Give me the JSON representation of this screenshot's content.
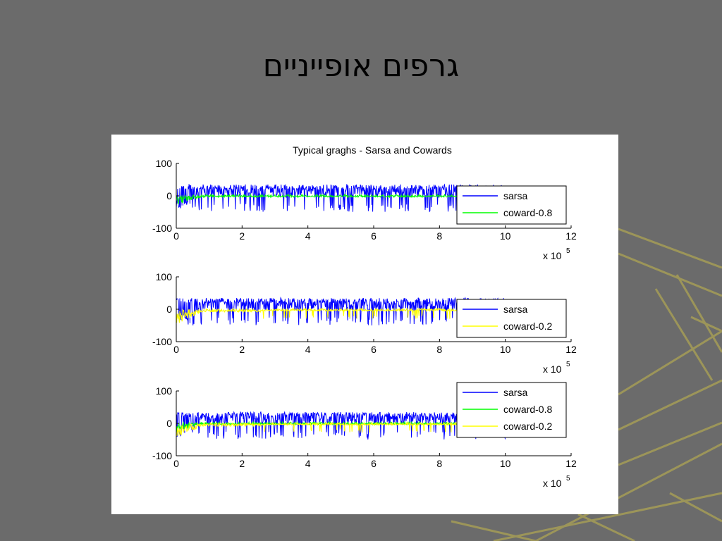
{
  "slide": {
    "title": "גרפים אופייניים"
  },
  "colors": {
    "background": "#6b6b6b",
    "decoration": "#a59d57",
    "sarsa": "#0000ff",
    "coward_08": "#00ff00",
    "coward_02": "#ffff00"
  },
  "chart_data": {
    "type": "line",
    "title": "Typical graghs - Sarsa and Cowards",
    "panels": [
      {
        "xlim": [
          0,
          12
        ],
        "ylim": [
          -100,
          100
        ],
        "xticks": [
          "0",
          "2",
          "4",
          "6",
          "8",
          "10",
          "12"
        ],
        "yticks": [
          "100",
          "0",
          "-100"
        ],
        "x_multiplier": "x 10",
        "x_exponent": "5",
        "legend_position": "right",
        "series": [
          {
            "name": "sarsa",
            "color": "#0000ff",
            "x_range": [
              0,
              10
            ],
            "approx_band": [
              -50,
              35
            ]
          },
          {
            "name": "coward-0.8",
            "color": "#00ff00",
            "x_range": [
              0,
              10
            ],
            "approx_band": [
              -45,
              10
            ]
          }
        ]
      },
      {
        "xlim": [
          0,
          12
        ],
        "ylim": [
          -100,
          100
        ],
        "xticks": [
          "0",
          "2",
          "4",
          "6",
          "8",
          "10",
          "12"
        ],
        "yticks": [
          "100",
          "0",
          "-100"
        ],
        "x_multiplier": "x 10",
        "x_exponent": "5",
        "legend_position": "right",
        "series": [
          {
            "name": "sarsa",
            "color": "#0000ff",
            "x_range": [
              0,
              10
            ],
            "approx_band": [
              -50,
              35
            ]
          },
          {
            "name": "coward-0.2",
            "color": "#ffff00",
            "x_range": [
              0,
              8.7
            ],
            "approx_band": [
              -40,
              5
            ]
          }
        ]
      },
      {
        "xlim": [
          0,
          12
        ],
        "ylim": [
          -100,
          100
        ],
        "xticks": [
          "0",
          "2",
          "4",
          "6",
          "8",
          "10",
          "12"
        ],
        "yticks": [
          "100",
          "0",
          "-100"
        ],
        "x_multiplier": "x 10",
        "x_exponent": "5",
        "legend_position": "right",
        "series": [
          {
            "name": "sarsa",
            "color": "#0000ff",
            "x_range": [
              0,
              10
            ],
            "approx_band": [
              -50,
              35
            ]
          },
          {
            "name": "coward-0.8",
            "color": "#00ff00",
            "x_range": [
              0,
              10
            ],
            "approx_band": [
              -45,
              10
            ]
          },
          {
            "name": "coward-0.2",
            "color": "#ffff00",
            "x_range": [
              0,
              8.7
            ],
            "approx_band": [
              -40,
              5
            ]
          }
        ]
      }
    ]
  }
}
